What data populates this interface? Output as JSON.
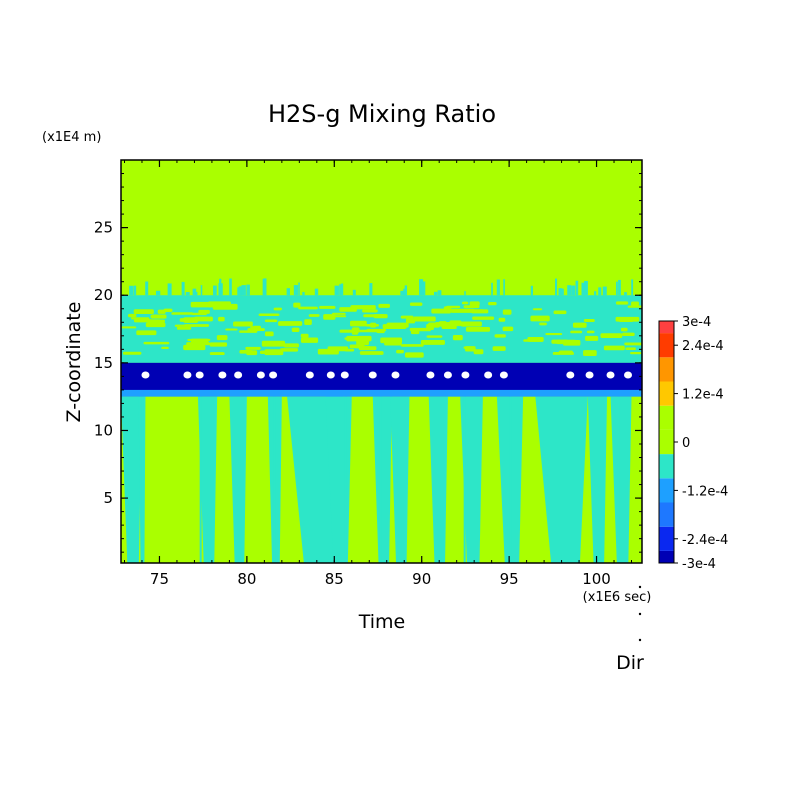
{
  "chart_data": {
    "type": "heatmap",
    "title": "H2S-g Mixing Ratio",
    "xlabel": "Time",
    "ylabel": "Z-coordinate",
    "x_unit": "(x1E6 sec)",
    "y_unit": "(x1E4 m)",
    "corner_label": "Dir",
    "xlim": [
      72.8,
      102.6
    ],
    "ylim": [
      0.2,
      30
    ],
    "x_ticks": [
      75,
      80,
      85,
      90,
      95,
      100
    ],
    "y_ticks": [
      5,
      10,
      15,
      20,
      25
    ],
    "colorbar": {
      "range": [
        -0.0003,
        0.0003
      ],
      "labels": [
        {
          "value": 0.0003,
          "text": "3e-4"
        },
        {
          "value": 0.00024,
          "text": "2.4e-4"
        },
        {
          "value": 0.00012,
          "text": "1.2e-4"
        },
        {
          "value": 0,
          "text": "0"
        },
        {
          "value": -0.00012,
          "text": "-1.2e-4"
        },
        {
          "value": -0.00024,
          "text": "-2.4e-4"
        },
        {
          "value": -0.0003,
          "text": "-3e-4"
        }
      ],
      "levels": [
        {
          "from": -0.0003,
          "to": -0.00027,
          "color": "#0000b4"
        },
        {
          "from": -0.00027,
          "to": -0.00021,
          "color": "#0a28f0"
        },
        {
          "from": -0.00021,
          "to": -0.00015,
          "color": "#1e78ff"
        },
        {
          "from": -0.00015,
          "to": -9e-05,
          "color": "#1ea0ff"
        },
        {
          "from": -9e-05,
          "to": -3e-05,
          "color": "#2de6c8"
        },
        {
          "from": -3e-05,
          "to": 3e-05,
          "color": "#aaff00"
        },
        {
          "from": 3e-05,
          "to": 9e-05,
          "color": "#aaff00"
        },
        {
          "from": 9e-05,
          "to": 0.00015,
          "color": "#ffc800"
        },
        {
          "from": 0.00015,
          "to": 0.00021,
          "color": "#ff9600"
        },
        {
          "from": 0.00021,
          "to": 0.00027,
          "color": "#ff3c00"
        },
        {
          "from": 0.00027,
          "to": 0.0003,
          "color": "#ff4040"
        }
      ]
    },
    "regions": {
      "background_value": 0,
      "depleted_band": {
        "z_range": [
          12.5,
          15
        ],
        "value": -0.00028
      },
      "inner_band": {
        "z_range": [
          13,
          14.7
        ],
        "value": -0.0003
      },
      "mixed_layer": {
        "z_range": [
          15,
          20
        ],
        "value": -6e-05
      },
      "lower_streaks_value": -6e-05,
      "min_spots_x": [
        74.2,
        76.6,
        77.3,
        78.6,
        79.5,
        80.8,
        81.5,
        83.6,
        84.8,
        85.6,
        87.2,
        88.5,
        90.5,
        91.5,
        92.5,
        93.8,
        94.7,
        98.5,
        99.6,
        100.8,
        101.8
      ]
    }
  }
}
